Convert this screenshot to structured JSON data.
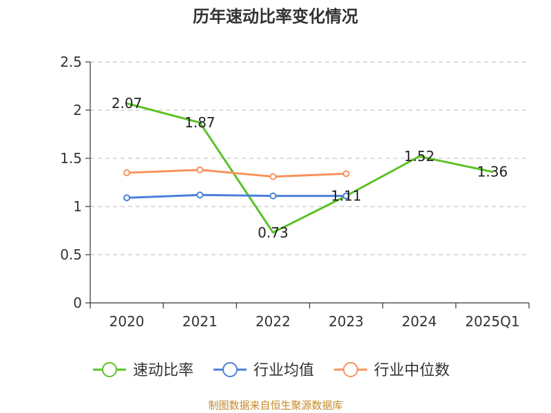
{
  "chart_data": {
    "type": "line",
    "title": "历年速动比率变化情况",
    "categories": [
      "2020",
      "2021",
      "2022",
      "2023",
      "2024",
      "2025Q1"
    ],
    "ylim": [
      0,
      2.5
    ],
    "yticks": [
      "0",
      "0.5",
      "1",
      "1.5",
      "2",
      "2.5"
    ],
    "ytick_values": [
      0,
      0.5,
      1,
      1.5,
      2,
      2.5
    ],
    "grid": true,
    "legend_position": "bottom",
    "series": [
      {
        "name": "速动比率",
        "color": "#5cc126",
        "values": [
          2.07,
          1.87,
          0.73,
          1.11,
          1.52,
          1.36
        ],
        "labels": [
          "2.07",
          "1.87",
          "0.73",
          "1.11",
          "1.52",
          "1.36"
        ],
        "show_labels": true,
        "show_markers": false
      },
      {
        "name": "行业均值",
        "color": "#4a7fdb",
        "values": [
          1.09,
          1.12,
          1.11,
          1.11,
          null,
          null
        ],
        "show_labels": false,
        "show_markers": true
      },
      {
        "name": "行业中位数",
        "color": "#f8925b",
        "values": [
          1.35,
          1.38,
          1.31,
          1.34,
          null,
          null
        ],
        "show_labels": false,
        "show_markers": true
      }
    ],
    "source": "制图数据来自恒生聚源数据库"
  }
}
